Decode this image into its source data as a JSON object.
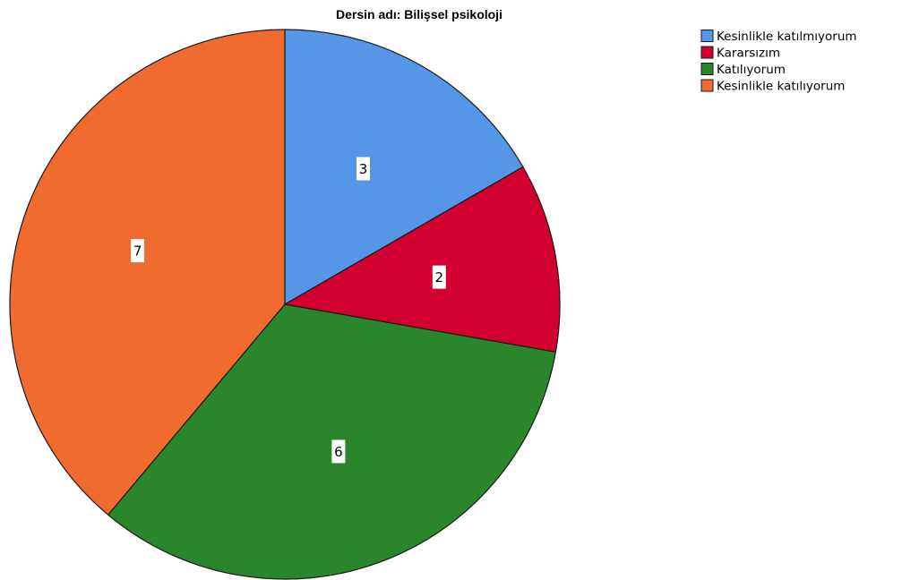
{
  "chart_data": {
    "type": "pie",
    "title": "Dersin adı: Bilişsel psikoloji",
    "categories": [
      "Kesinlikle katılmıyorum",
      "Kararsızım",
      "Katılıyorum",
      "Kesinlikle katılıyorum"
    ],
    "values": [
      3,
      2,
      6,
      7
    ],
    "colors": [
      "#5596e6",
      "#d2002f",
      "#2a862a",
      "#f16a2f"
    ],
    "data_labels": [
      "3",
      "2",
      "6",
      "7"
    ],
    "start_angle_deg": 0,
    "direction": "clockwise",
    "legend_position": "top-right",
    "slice_border_color": "#1a1a1a"
  }
}
